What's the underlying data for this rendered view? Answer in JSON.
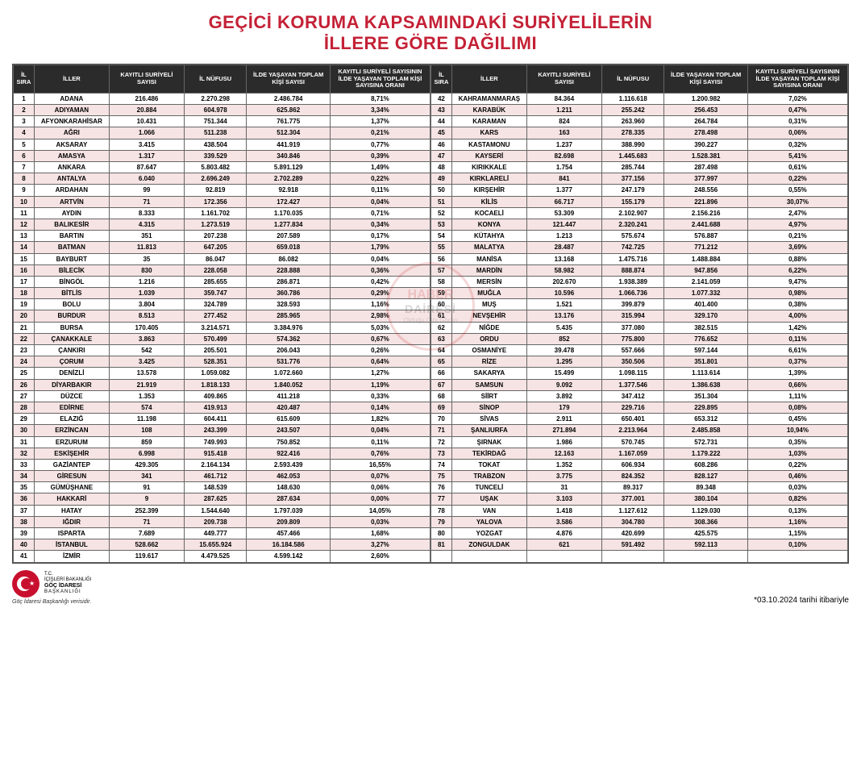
{
  "title": {
    "line1": "GEÇİCİ KORUMA KAPSAMINDAKİ SURİYELİLERİN",
    "line2": "İLLERE GÖRE DAĞILIMI",
    "color": "#c42136"
  },
  "header_bg": "#2b2b2b",
  "row_alt_bg": "#f6e3e3",
  "row_bg": "#ffffff",
  "columns": [
    "İL SIRA",
    "İLLER",
    "KAYITLI SURİYELİ SAYISI",
    "İL NÜFUSU",
    "İLDE YAŞAYAN TOPLAM KİŞİ SAYISI",
    "KAYITLI SURİYELİ SAYISININ İLDE YAŞAYAN TOPLAM KİŞİ SAYISINA ORANI"
  ],
  "rows_left": [
    [
      "1",
      "ADANA",
      "216.486",
      "2.270.298",
      "2.486.784",
      "8,71%"
    ],
    [
      "2",
      "ADIYAMAN",
      "20.884",
      "604.978",
      "625.862",
      "3,34%"
    ],
    [
      "3",
      "AFYONKARAHİSAR",
      "10.431",
      "751.344",
      "761.775",
      "1,37%"
    ],
    [
      "4",
      "AĞRI",
      "1.066",
      "511.238",
      "512.304",
      "0,21%"
    ],
    [
      "5",
      "AKSARAY",
      "3.415",
      "438.504",
      "441.919",
      "0,77%"
    ],
    [
      "6",
      "AMASYA",
      "1.317",
      "339.529",
      "340.846",
      "0,39%"
    ],
    [
      "7",
      "ANKARA",
      "87.647",
      "5.803.482",
      "5.891.129",
      "1,49%"
    ],
    [
      "8",
      "ANTALYA",
      "6.040",
      "2.696.249",
      "2.702.289",
      "0,22%"
    ],
    [
      "9",
      "ARDAHAN",
      "99",
      "92.819",
      "92.918",
      "0,11%"
    ],
    [
      "10",
      "ARTVİN",
      "71",
      "172.356",
      "172.427",
      "0,04%"
    ],
    [
      "11",
      "AYDIN",
      "8.333",
      "1.161.702",
      "1.170.035",
      "0,71%"
    ],
    [
      "12",
      "BALIKESİR",
      "4.315",
      "1.273.519",
      "1.277.834",
      "0,34%"
    ],
    [
      "13",
      "BARTIN",
      "351",
      "207.238",
      "207.589",
      "0,17%"
    ],
    [
      "14",
      "BATMAN",
      "11.813",
      "647.205",
      "659.018",
      "1,79%"
    ],
    [
      "15",
      "BAYBURT",
      "35",
      "86.047",
      "86.082",
      "0,04%"
    ],
    [
      "16",
      "BİLECİK",
      "830",
      "228.058",
      "228.888",
      "0,36%"
    ],
    [
      "17",
      "BİNGÖL",
      "1.216",
      "285.655",
      "286.871",
      "0,42%"
    ],
    [
      "18",
      "BİTLİS",
      "1.039",
      "359.747",
      "360.786",
      "0,29%"
    ],
    [
      "19",
      "BOLU",
      "3.804",
      "324.789",
      "328.593",
      "1,16%"
    ],
    [
      "20",
      "BURDUR",
      "8.513",
      "277.452",
      "285.965",
      "2,98%"
    ],
    [
      "21",
      "BURSA",
      "170.405",
      "3.214.571",
      "3.384.976",
      "5,03%"
    ],
    [
      "22",
      "ÇANAKKALE",
      "3.863",
      "570.499",
      "574.362",
      "0,67%"
    ],
    [
      "23",
      "ÇANKIRI",
      "542",
      "205.501",
      "206.043",
      "0,26%"
    ],
    [
      "24",
      "ÇORUM",
      "3.425",
      "528.351",
      "531.776",
      "0,64%"
    ],
    [
      "25",
      "DENİZLİ",
      "13.578",
      "1.059.082",
      "1.072.660",
      "1,27%"
    ],
    [
      "26",
      "DİYARBAKIR",
      "21.919",
      "1.818.133",
      "1.840.052",
      "1,19%"
    ],
    [
      "27",
      "DÜZCE",
      "1.353",
      "409.865",
      "411.218",
      "0,33%"
    ],
    [
      "28",
      "EDİRNE",
      "574",
      "419.913",
      "420.487",
      "0,14%"
    ],
    [
      "29",
      "ELAZIĞ",
      "11.198",
      "604.411",
      "615.609",
      "1,82%"
    ],
    [
      "30",
      "ERZİNCAN",
      "108",
      "243.399",
      "243.507",
      "0,04%"
    ],
    [
      "31",
      "ERZURUM",
      "859",
      "749.993",
      "750.852",
      "0,11%"
    ],
    [
      "32",
      "ESKİŞEHİR",
      "6.998",
      "915.418",
      "922.416",
      "0,76%"
    ],
    [
      "33",
      "GAZİANTEP",
      "429.305",
      "2.164.134",
      "2.593.439",
      "16,55%"
    ],
    [
      "34",
      "GİRESUN",
      "341",
      "461.712",
      "462.053",
      "0,07%"
    ],
    [
      "35",
      "GÜMÜŞHANE",
      "91",
      "148.539",
      "148.630",
      "0,06%"
    ],
    [
      "36",
      "HAKKARİ",
      "9",
      "287.625",
      "287.634",
      "0,00%"
    ],
    [
      "37",
      "HATAY",
      "252.399",
      "1.544.640",
      "1.797.039",
      "14,05%"
    ],
    [
      "38",
      "IĞDIR",
      "71",
      "209.738",
      "209.809",
      "0,03%"
    ],
    [
      "39",
      "ISPARTA",
      "7.689",
      "449.777",
      "457.466",
      "1,68%"
    ],
    [
      "40",
      "İSTANBUL",
      "528.662",
      "15.655.924",
      "16.184.586",
      "3,27%"
    ],
    [
      "41",
      "İZMİR",
      "119.617",
      "4.479.525",
      "4.599.142",
      "2,60%"
    ]
  ],
  "rows_right": [
    [
      "42",
      "KAHRAMANMARAŞ",
      "84.364",
      "1.116.618",
      "1.200.982",
      "7,02%"
    ],
    [
      "43",
      "KARABÜK",
      "1.211",
      "255.242",
      "256.453",
      "0,47%"
    ],
    [
      "44",
      "KARAMAN",
      "824",
      "263.960",
      "264.784",
      "0,31%"
    ],
    [
      "45",
      "KARS",
      "163",
      "278.335",
      "278.498",
      "0,06%"
    ],
    [
      "46",
      "KASTAMONU",
      "1.237",
      "388.990",
      "390.227",
      "0,32%"
    ],
    [
      "47",
      "KAYSERİ",
      "82.698",
      "1.445.683",
      "1.528.381",
      "5,41%"
    ],
    [
      "48",
      "KIRIKKALE",
      "1.754",
      "285.744",
      "287.498",
      "0,61%"
    ],
    [
      "49",
      "KIRKLARELİ",
      "841",
      "377.156",
      "377.997",
      "0,22%"
    ],
    [
      "50",
      "KIRŞEHİR",
      "1.377",
      "247.179",
      "248.556",
      "0,55%"
    ],
    [
      "51",
      "KİLİS",
      "66.717",
      "155.179",
      "221.896",
      "30,07%"
    ],
    [
      "52",
      "KOCAELİ",
      "53.309",
      "2.102.907",
      "2.156.216",
      "2,47%"
    ],
    [
      "53",
      "KONYA",
      "121.447",
      "2.320.241",
      "2.441.688",
      "4,97%"
    ],
    [
      "54",
      "KÜTAHYA",
      "1.213",
      "575.674",
      "576.887",
      "0,21%"
    ],
    [
      "55",
      "MALATYA",
      "28.487",
      "742.725",
      "771.212",
      "3,69%"
    ],
    [
      "56",
      "MANİSA",
      "13.168",
      "1.475.716",
      "1.488.884",
      "0,88%"
    ],
    [
      "57",
      "MARDİN",
      "58.982",
      "888.874",
      "947.856",
      "6,22%"
    ],
    [
      "58",
      "MERSİN",
      "202.670",
      "1.938.389",
      "2.141.059",
      "9,47%"
    ],
    [
      "59",
      "MUĞLA",
      "10.596",
      "1.066.736",
      "1.077.332",
      "0,98%"
    ],
    [
      "60",
      "MUŞ",
      "1.521",
      "399.879",
      "401.400",
      "0,38%"
    ],
    [
      "61",
      "NEVŞEHİR",
      "13.176",
      "315.994",
      "329.170",
      "4,00%"
    ],
    [
      "62",
      "NİĞDE",
      "5.435",
      "377.080",
      "382.515",
      "1,42%"
    ],
    [
      "63",
      "ORDU",
      "852",
      "775.800",
      "776.652",
      "0,11%"
    ],
    [
      "64",
      "OSMANİYE",
      "39.478",
      "557.666",
      "597.144",
      "6,61%"
    ],
    [
      "65",
      "RİZE",
      "1.295",
      "350.506",
      "351.801",
      "0,37%"
    ],
    [
      "66",
      "SAKARYA",
      "15.499",
      "1.098.115",
      "1.113.614",
      "1,39%"
    ],
    [
      "67",
      "SAMSUN",
      "9.092",
      "1.377.546",
      "1.386.638",
      "0,66%"
    ],
    [
      "68",
      "SİİRT",
      "3.892",
      "347.412",
      "351.304",
      "1,11%"
    ],
    [
      "69",
      "SİNOP",
      "179",
      "229.716",
      "229.895",
      "0,08%"
    ],
    [
      "70",
      "SİVAS",
      "2.911",
      "650.401",
      "653.312",
      "0,45%"
    ],
    [
      "71",
      "ŞANLIURFA",
      "271.894",
      "2.213.964",
      "2.485.858",
      "10,94%"
    ],
    [
      "72",
      "ŞIRNAK",
      "1.986",
      "570.745",
      "572.731",
      "0,35%"
    ],
    [
      "73",
      "TEKİRDAĞ",
      "12.163",
      "1.167.059",
      "1.179.222",
      "1,03%"
    ],
    [
      "74",
      "TOKAT",
      "1.352",
      "606.934",
      "608.286",
      "0,22%"
    ],
    [
      "75",
      "TRABZON",
      "3.775",
      "824.352",
      "828.127",
      "0,46%"
    ],
    [
      "76",
      "TUNCELİ",
      "31",
      "89.317",
      "89.348",
      "0,03%"
    ],
    [
      "77",
      "UŞAK",
      "3.103",
      "377.001",
      "380.104",
      "0,82%"
    ],
    [
      "78",
      "VAN",
      "1.418",
      "1.127.612",
      "1.129.030",
      "0,13%"
    ],
    [
      "79",
      "YALOVA",
      "3.586",
      "304.780",
      "308.366",
      "1,16%"
    ],
    [
      "80",
      "YOZGAT",
      "4.876",
      "420.699",
      "425.575",
      "1,15%"
    ],
    [
      "81",
      "ZONGULDAK",
      "621",
      "591.492",
      "592.113",
      "0,10%"
    ]
  ],
  "footer": {
    "logo_lines": [
      "T.C.",
      "İÇİŞLERİ BAKANLIĞI",
      "GÖÇ İDARESİ",
      "BAŞKANLIĞI"
    ],
    "attribution": "Göç İdaresi Başkanlığı verisidir.",
    "date_note": "*03.10.2024 tarihi itibariyle"
  },
  "watermark": {
    "line1": "HABER",
    "line2": "DAİRESİ",
    "sub": "Olduğu Gibi\nGörün"
  }
}
